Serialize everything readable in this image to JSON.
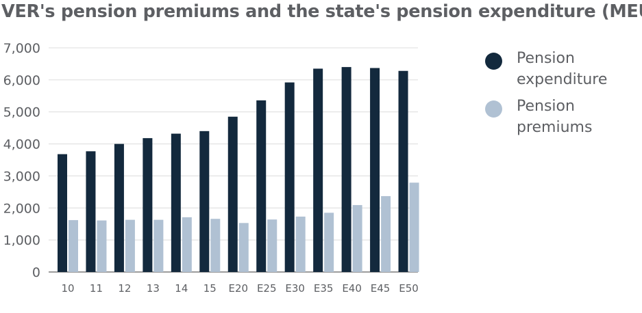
{
  "chart_data": {
    "type": "bar",
    "title": "VER's pension premiums and the state's pension expenditure (MEUR)",
    "categories": [
      "10",
      "11",
      "12",
      "13",
      "14",
      "15",
      "E20",
      "E25",
      "E30",
      "E35",
      "E40",
      "E45",
      "E50"
    ],
    "series": [
      {
        "name": "Pension expenditure",
        "color": "#13293d",
        "values": [
          3680,
          3770,
          4000,
          4180,
          4320,
          4400,
          4850,
          5360,
          5920,
          6350,
          6400,
          6370,
          6280
        ]
      },
      {
        "name": "Pension premiums",
        "color": "#b0c1d3",
        "values": [
          1620,
          1610,
          1630,
          1630,
          1710,
          1660,
          1530,
          1640,
          1730,
          1850,
          2090,
          2370,
          2790
        ]
      }
    ],
    "y_ticks": [
      "0",
      "1,000",
      "2,000",
      "3,000",
      "4,000",
      "5,000",
      "6,000",
      "7,000"
    ],
    "ylim": [
      0,
      7000
    ],
    "grid": "horizontal",
    "legend_position": "right",
    "legend_labels": [
      [
        "Pension",
        "expenditure"
      ],
      [
        "Pension",
        "premiums"
      ]
    ]
  }
}
